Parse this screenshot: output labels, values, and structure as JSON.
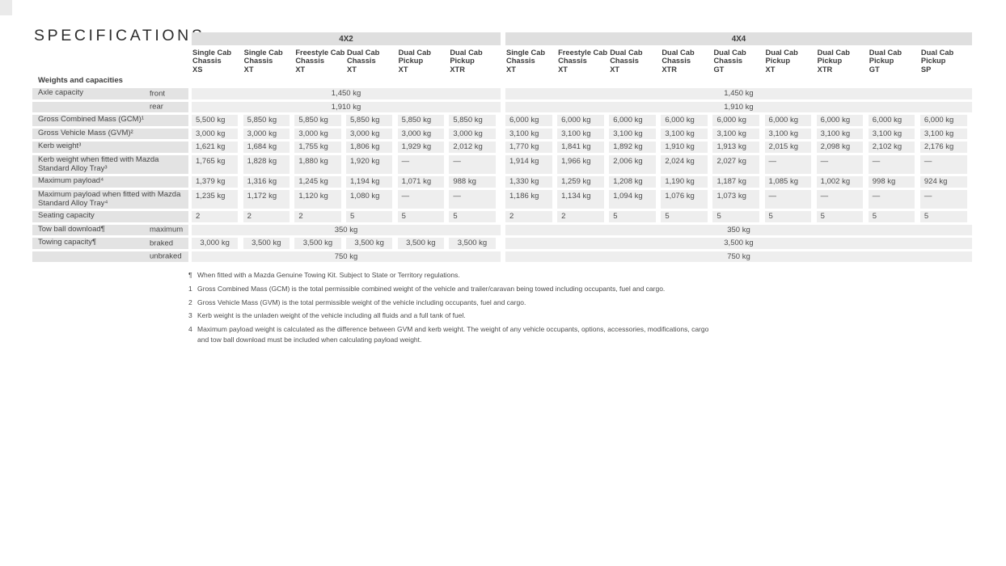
{
  "title": "SPECIFICATIONS",
  "section_label": "Weights and capacities",
  "colors": {
    "band_bg": "#dfdfdf",
    "label_cell_bg": "#e3e3e3",
    "data_cell_bg": "#eeeeee",
    "text": "#4c4c4c"
  },
  "tables": [
    {
      "name": "4X2",
      "columns": [
        [
          "Single Cab",
          "Chassis",
          "XS"
        ],
        [
          "Single Cab",
          "Chassis",
          "XT"
        ],
        [
          "Freestyle Cab",
          "Chassis",
          "XT"
        ],
        [
          "Dual Cab",
          "Chassis",
          "XT"
        ],
        [
          "Dual Cab",
          "Pickup",
          "XT"
        ],
        [
          "Dual Cab",
          "Pickup",
          "XTR"
        ]
      ]
    },
    {
      "name": "4X4",
      "columns": [
        [
          "Single Cab",
          "Chassis",
          "XT"
        ],
        [
          "Freestyle Cab",
          "Chassis",
          "XT"
        ],
        [
          "Dual Cab",
          "Chassis",
          "XT"
        ],
        [
          "Dual Cab",
          "Chassis",
          "XTR"
        ],
        [
          "Dual Cab",
          "Chassis",
          "GT"
        ],
        [
          "Dual Cab",
          "Pickup",
          "XT"
        ],
        [
          "Dual Cab",
          "Pickup",
          "XTR"
        ],
        [
          "Dual Cab",
          "Pickup",
          "GT"
        ],
        [
          "Dual Cab",
          "Pickup",
          "SP"
        ]
      ]
    }
  ],
  "rows": [
    {
      "label": "Axle capacity",
      "sub": "front",
      "table_4x2": {
        "mode": "span",
        "value": "1,450 kg"
      },
      "table_4x4": {
        "mode": "span",
        "value": "1,450 kg"
      }
    },
    {
      "label": "",
      "sub": "rear",
      "table_4x2": {
        "mode": "span",
        "value": "1,910 kg"
      },
      "table_4x4": {
        "mode": "span",
        "value": "1,910 kg"
      }
    },
    {
      "label": "Gross Combined Mass (GCM)¹",
      "table_4x2": {
        "mode": "cells",
        "values": [
          "5,500 kg",
          "5,850 kg",
          "5,850 kg",
          "5,850 kg",
          "5,850 kg",
          "5,850 kg"
        ]
      },
      "table_4x4": {
        "mode": "cells",
        "values": [
          "6,000 kg",
          "6,000 kg",
          "6,000 kg",
          "6,000 kg",
          "6,000 kg",
          "6,000 kg",
          "6,000 kg",
          "6,000 kg",
          "6,000 kg"
        ]
      }
    },
    {
      "label": "Gross Vehicle Mass (GVM)²",
      "table_4x2": {
        "mode": "cells",
        "values": [
          "3,000 kg",
          "3,000 kg",
          "3,000 kg",
          "3,000 kg",
          "3,000 kg",
          "3,000 kg"
        ]
      },
      "table_4x4": {
        "mode": "cells",
        "values": [
          "3,100 kg",
          "3,100 kg",
          "3,100 kg",
          "3,100 kg",
          "3,100 kg",
          "3,100 kg",
          "3,100 kg",
          "3,100 kg",
          "3,100 kg"
        ]
      }
    },
    {
      "label": "Kerb weight³",
      "table_4x2": {
        "mode": "cells",
        "values": [
          "1,621 kg",
          "1,684 kg",
          "1,755 kg",
          "1,806 kg",
          "1,929 kg",
          "2,012 kg"
        ]
      },
      "table_4x4": {
        "mode": "cells",
        "values": [
          "1,770 kg",
          "1,841 kg",
          "1,892 kg",
          "1,910 kg",
          "1,913 kg",
          "2,015 kg",
          "2,098 kg",
          "2,102 kg",
          "2,176 kg"
        ]
      }
    },
    {
      "label": "Kerb weight when fitted with Mazda Standard Alloy Tray³",
      "table_4x2": {
        "mode": "cells",
        "values": [
          "1,765 kg",
          "1,828 kg",
          "1,880 kg",
          "1,920 kg",
          "—",
          "—"
        ]
      },
      "table_4x4": {
        "mode": "cells",
        "values": [
          "1,914 kg",
          "1,966 kg",
          "2,006 kg",
          "2,024 kg",
          "2,027 kg",
          "—",
          "—",
          "—",
          "—"
        ]
      }
    },
    {
      "label": "Maximum payload⁴",
      "table_4x2": {
        "mode": "cells",
        "values": [
          "1,379 kg",
          "1,316 kg",
          "1,245 kg",
          "1,194 kg",
          "1,071 kg",
          "988 kg"
        ]
      },
      "table_4x4": {
        "mode": "cells",
        "values": [
          "1,330 kg",
          "1,259 kg",
          "1,208 kg",
          "1,190 kg",
          "1,187 kg",
          "1,085 kg",
          "1,002 kg",
          "998 kg",
          "924 kg"
        ]
      }
    },
    {
      "label": "Maximum payload when fitted with Mazda Standard Alloy Tray⁴",
      "table_4x2": {
        "mode": "cells",
        "values": [
          "1,235 kg",
          "1,172 kg",
          "1,120 kg",
          "1,080 kg",
          "—",
          "—"
        ]
      },
      "table_4x4": {
        "mode": "cells",
        "values": [
          "1,186 kg",
          "1,134 kg",
          "1,094 kg",
          "1,076 kg",
          "1,073 kg",
          "—",
          "—",
          "—",
          "—"
        ]
      }
    },
    {
      "label": "Seating capacity",
      "table_4x2": {
        "mode": "cells",
        "values": [
          "2",
          "2",
          "2",
          "5",
          "5",
          "5"
        ]
      },
      "table_4x4": {
        "mode": "cells",
        "values": [
          "2",
          "2",
          "5",
          "5",
          "5",
          "5",
          "5",
          "5",
          "5"
        ]
      }
    },
    {
      "label": "Tow ball download¶",
      "sub": "maximum",
      "table_4x2": {
        "mode": "span",
        "value": "350 kg"
      },
      "table_4x4": {
        "mode": "span",
        "value": "350 kg"
      }
    },
    {
      "label": "Towing capacity¶",
      "sub": "braked",
      "table_4x2": {
        "mode": "cells",
        "align": "center",
        "values": [
          "3,000 kg",
          "3,500 kg",
          "3,500 kg",
          "3,500 kg",
          "3,500 kg",
          "3,500 kg"
        ]
      },
      "table_4x4": {
        "mode": "span",
        "value": "3,500 kg"
      }
    },
    {
      "label": "",
      "sub": "unbraked",
      "table_4x2": {
        "mode": "span",
        "value": "750 kg"
      },
      "table_4x4": {
        "mode": "span",
        "value": "750 kg"
      }
    }
  ],
  "footnotes": [
    {
      "marker": "¶",
      "text": "When fitted with a Mazda Genuine Towing Kit. Subject to State or Territory regulations."
    },
    {
      "marker": "1",
      "text": "Gross Combined Mass (GCM) is the total permissible combined weight of the vehicle and trailer/caravan being towed including occupants, fuel and cargo."
    },
    {
      "marker": "2",
      "text": "Gross Vehicle Mass (GVM) is the total permissible weight of the vehicle including occupants, fuel and cargo."
    },
    {
      "marker": "3",
      "text": "Kerb weight is the unladen weight of the vehicle including all fluids and a full tank of fuel."
    },
    {
      "marker": "4",
      "text": "Maximum payload weight is calculated as the difference between GVM and kerb weight. The weight of any vehicle occupants, options, accessories, modifications, cargo and tow ball download must be included when calculating payload weight."
    }
  ]
}
